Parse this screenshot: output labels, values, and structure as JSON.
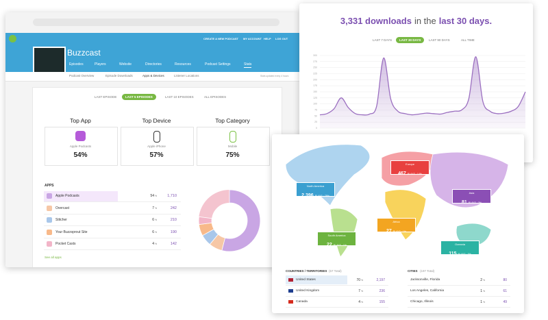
{
  "admin": {
    "nav": [
      "CREATE A NEW PODCAST",
      "MY ACCOUNT",
      "HELP",
      "LOG OUT"
    ],
    "podcast": "Buzzcast",
    "tabs": [
      "Episodes",
      "Players",
      "Website",
      "Directories",
      "Resources",
      "Podcast Settings",
      "Stats"
    ],
    "subtabs": [
      "Podcast Overview",
      "Episode Downloads",
      "Apps & Devices",
      "Listener Locations"
    ],
    "updated": "Stats updated every 4 hours",
    "filters": [
      "LAST EPISODE",
      "LAST 5 EPISODES",
      "LAST 10 EPISODES",
      "ALL EPISODES"
    ],
    "tops": [
      {
        "title": "Top App",
        "name": "Apple Podcasts",
        "value": "54%"
      },
      {
        "title": "Top Device",
        "name": "Apple iPhone",
        "value": "57%"
      },
      {
        "title": "Top Category",
        "name": "Mobile",
        "value": "75%"
      }
    ],
    "apps_title": "APPS",
    "pct_unit": "%",
    "apps": [
      {
        "name": "Apple Podcasts",
        "pct": 54,
        "plays": "1,710"
      },
      {
        "name": "Overcast",
        "pct": 7,
        "plays": "242"
      },
      {
        "name": "Stitcher",
        "pct": 6,
        "plays": "210"
      },
      {
        "name": "Your Buzzsprout Site",
        "pct": 6,
        "plays": "190"
      },
      {
        "name": "Pocket Casts",
        "pct": 4,
        "plays": "142"
      }
    ],
    "see_all": "See all apps"
  },
  "downloads": {
    "count": "3,331 downloads",
    "middle": "in the",
    "period": "last 30 days.",
    "filters": [
      "LAST 7 DAYS",
      "LAST 30 DAYS",
      "LAST 90 DAYS",
      "ALL TIME"
    ],
    "chart": {
      "type": "line",
      "values": [
        55,
        60,
        80,
        125,
        85,
        60,
        55,
        58,
        90,
        290,
        120,
        70,
        60,
        55,
        58,
        62,
        60,
        58,
        65,
        70,
        75,
        120,
        295,
        110,
        70,
        60,
        62,
        70,
        90,
        150
      ],
      "ylim": [
        0,
        300
      ],
      "yticks": [
        0,
        25,
        50,
        75,
        100,
        125,
        150,
        175,
        200,
        225,
        250,
        275,
        300
      ],
      "color": "#9b6fc0",
      "grid": true
    }
  },
  "map": {
    "regions": [
      {
        "name": "North America",
        "plays": "2,396",
        "detail": "PLAYS · 78%"
      },
      {
        "name": "Europe",
        "plays": "467",
        "detail": "PLAYS · 14%"
      },
      {
        "name": "Asia",
        "plays": "81",
        "detail": "PLAYS · 3%"
      },
      {
        "name": "Africa",
        "plays": "27",
        "detail": "PLAYS · 1%"
      },
      {
        "name": "South America",
        "plays": "22",
        "detail": "PLAYS · 1%"
      },
      {
        "name": "Oceania",
        "plays": "115",
        "detail": "PLAYS · 3%"
      }
    ],
    "countries_title": "COUNTRIES / TERRITORIES",
    "countries_total": "(57 Total)",
    "countries": [
      {
        "name": "United States",
        "pct": 70,
        "count": "2,197"
      },
      {
        "name": "United Kingdom",
        "pct": 7,
        "count": "236"
      },
      {
        "name": "Canada",
        "pct": 4,
        "count": "155"
      }
    ],
    "cities_title": "CITIES",
    "cities_total": "(197 Total)",
    "cities": [
      {
        "name": "Jacksonville, Florida",
        "pct": 2,
        "count": "80"
      },
      {
        "name": "Los Angeles, California",
        "pct": 1,
        "count": "61"
      },
      {
        "name": "Chicago, Illinois",
        "pct": 1,
        "count": "49"
      }
    ]
  }
}
